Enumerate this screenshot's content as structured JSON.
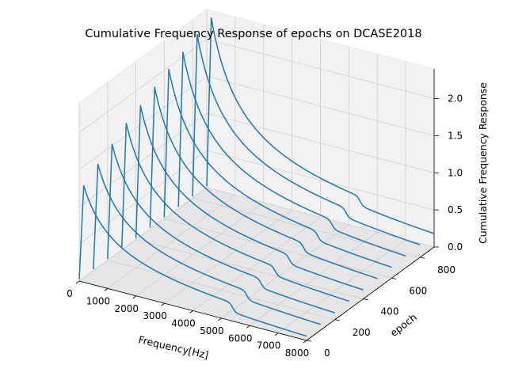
{
  "chart_data": {
    "type": "line",
    "projection": "3d-waterfall",
    "title": "Cumulative Frequency Response of epochs on DCASE2018",
    "xlabel": "Frequency[Hz]",
    "ylabel": "epoch",
    "zlabel": "Cumulative Frequency Response",
    "xlim": [
      0,
      8000
    ],
    "ylim": [
      0,
      900
    ],
    "zlim": [
      0,
      2.4
    ],
    "x_ticks": [
      "0",
      "1000",
      "2000",
      "3000",
      "4000",
      "5000",
      "6000",
      "7000",
      "8000"
    ],
    "y_ticks": [
      "0",
      "200",
      "400",
      "600",
      "800"
    ],
    "z_ticks": [
      "0.0",
      "0.5",
      "1.0",
      "1.5",
      "2.0"
    ],
    "grid": true,
    "line_color": "#1f77b4",
    "curve_shape": {
      "start_value": 0.02,
      "peak_frequency_hz": 160,
      "step_frequency_hz": 5400,
      "step_drop": 0.12,
      "end_value": 0.02
    },
    "series": [
      {
        "epoch": 0,
        "peak": 1.3
      },
      {
        "epoch": 100,
        "peak": 1.45
      },
      {
        "epoch": 200,
        "peak": 1.58
      },
      {
        "epoch": 300,
        "peak": 1.72
      },
      {
        "epoch": 400,
        "peak": 1.82
      },
      {
        "epoch": 500,
        "peak": 1.93
      },
      {
        "epoch": 600,
        "peak": 2.03
      },
      {
        "epoch": 700,
        "peak": 2.12
      },
      {
        "epoch": 800,
        "peak": 2.22
      },
      {
        "epoch": 900,
        "peak": 2.3
      }
    ]
  }
}
